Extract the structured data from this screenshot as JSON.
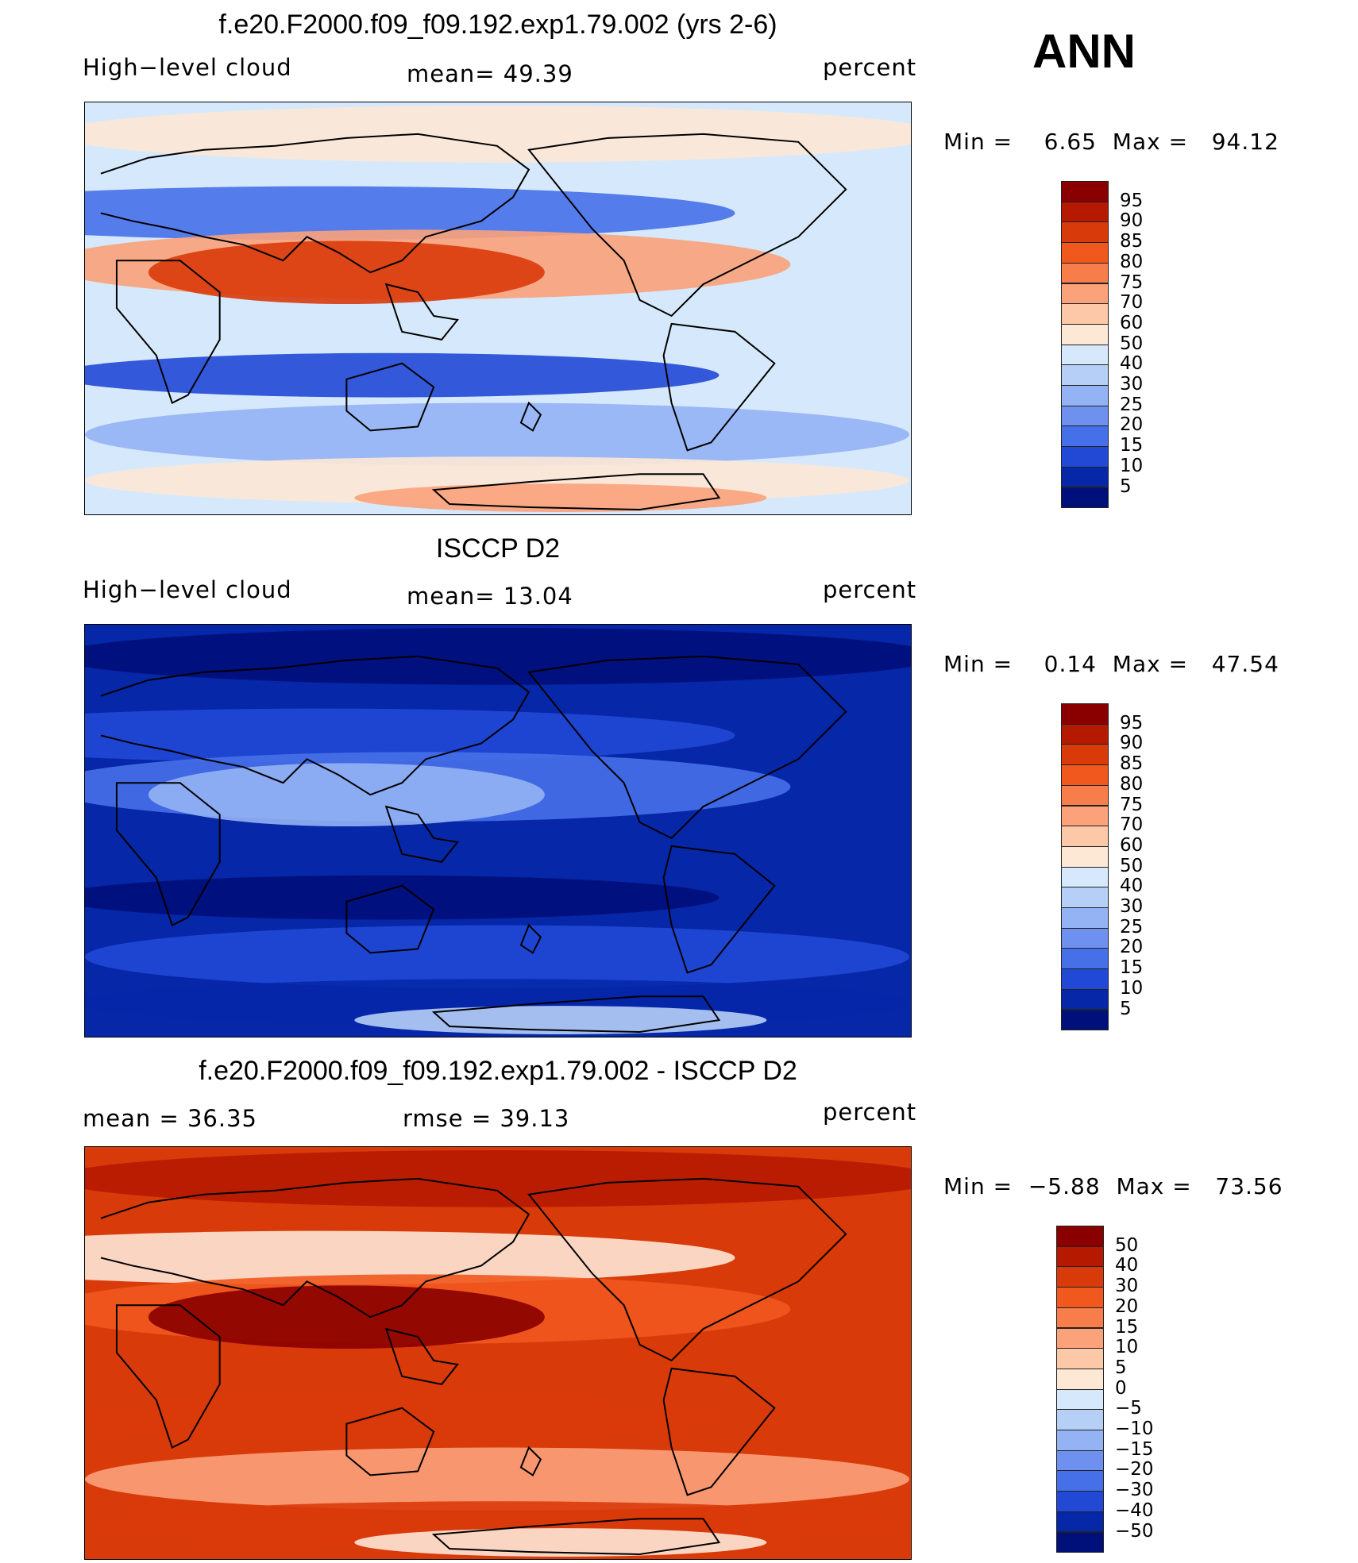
{
  "season": "ANN",
  "panels": [
    {
      "title": "f.e20.F2000.f09_f09.192.exp1.79.002 (yrs 2-6)",
      "left_text": "High−level cloud",
      "center_text": "mean=   49.39",
      "right_text": "percent",
      "minmax": "Min =    6.65  Max =   94.12",
      "colorbar": {
        "labels": [
          "95",
          "90",
          "85",
          "80",
          "75",
          "70",
          "60",
          "50",
          "40",
          "30",
          "25",
          "20",
          "15",
          "10",
          "5"
        ],
        "colors": [
          "#8a0000",
          "#b51a00",
          "#d93a0a",
          "#f0581e",
          "#f77d4a",
          "#fba27a",
          "#fdc8a8",
          "#fde8d6",
          "#d6e8fb",
          "#b6cff7",
          "#93b3f4",
          "#6e91ef",
          "#4670e8",
          "#2149d6",
          "#0627a8",
          "#00107a"
        ]
      },
      "map": {
        "background": "#d6e8fb",
        "bands": [
          {
            "color": "#fde8d6"
          },
          {
            "color": "#4670e8"
          },
          {
            "color": "#fba27a"
          },
          {
            "color": "#d93a0a"
          },
          {
            "color": "#2149d6"
          },
          {
            "color": "#93b3f4"
          },
          {
            "color": "#fde8d6"
          },
          {
            "color": "#fba27a"
          }
        ]
      }
    },
    {
      "title": "ISCCP D2",
      "left_text": "High−level cloud",
      "center_text": "mean=   13.04",
      "right_text": "percent",
      "minmax": "Min =    0.14  Max =   47.54",
      "colorbar": {
        "labels": [
          "95",
          "90",
          "85",
          "80",
          "75",
          "70",
          "60",
          "50",
          "40",
          "30",
          "25",
          "20",
          "15",
          "10",
          "5"
        ],
        "colors": [
          "#8a0000",
          "#b51a00",
          "#d93a0a",
          "#f0581e",
          "#f77d4a",
          "#fba27a",
          "#fdc8a8",
          "#fde8d6",
          "#d6e8fb",
          "#b6cff7",
          "#93b3f4",
          "#6e91ef",
          "#4670e8",
          "#2149d6",
          "#0627a8",
          "#00107a"
        ]
      },
      "map": {
        "background": "#0627a8",
        "bands": [
          {
            "color": "#00107a"
          },
          {
            "color": "#2149d6"
          },
          {
            "color": "#4670e8"
          },
          {
            "color": "#93b3f4"
          },
          {
            "color": "#00107a"
          },
          {
            "color": "#2149d6"
          },
          {
            "color": "#0627a8"
          },
          {
            "color": "#b6cff7"
          }
        ]
      }
    },
    {
      "title": "f.e20.F2000.f09_f09.192.exp1.79.002 - ISCCP D2",
      "left_text": "mean =   36.35",
      "center_text": "rmse =   39.13",
      "right_text": "percent",
      "minmax": "Min =  −5.88  Max =   73.56",
      "colorbar": {
        "labels": [
          "50",
          "40",
          "30",
          "20",
          "15",
          "10",
          "5",
          "0",
          "−5",
          "−10",
          "−15",
          "−20",
          "−30",
          "−40",
          "−50"
        ],
        "colors": [
          "#8a0000",
          "#b51a00",
          "#d93a0a",
          "#f0581e",
          "#f77d4a",
          "#fba27a",
          "#fdc8a8",
          "#fde8d6",
          "#d6e8fb",
          "#b6cff7",
          "#93b3f4",
          "#6e91ef",
          "#4670e8",
          "#2149d6",
          "#0627a8",
          "#00107a"
        ]
      },
      "map": {
        "background": "#d93a0a",
        "bands": [
          {
            "color": "#b51a00"
          },
          {
            "color": "#fde8d6"
          },
          {
            "color": "#f0581e"
          },
          {
            "color": "#8a0000"
          },
          {
            "color": "#d93a0a"
          },
          {
            "color": "#fba27a"
          },
          {
            "color": "#d93a0a"
          },
          {
            "color": "#fde8d6"
          }
        ]
      }
    }
  ]
}
